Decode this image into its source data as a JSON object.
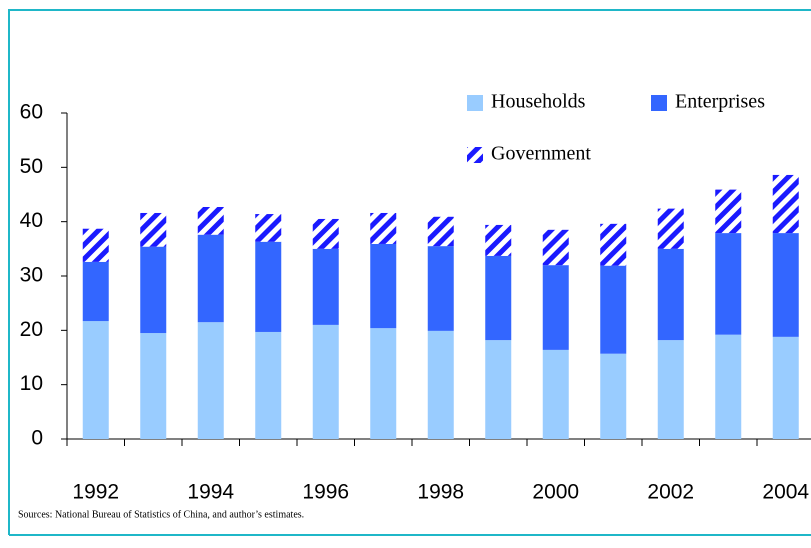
{
  "chart_data": {
    "type": "stacked-bar",
    "categories": [
      "1992",
      null,
      "1994",
      null,
      "1996",
      null,
      "1998",
      null,
      "2000",
      null,
      "2002",
      null,
      "2004"
    ],
    "series": [
      {
        "name": "Households",
        "color": "#99ccff",
        "values": [
          21.7,
          19.5,
          21.5,
          19.7,
          21,
          20.4,
          19.9,
          18.2,
          16.4,
          15.7,
          18.2,
          19.2,
          18.8
        ]
      },
      {
        "name": "Enterprises",
        "color": "#3366ff",
        "values": [
          10.9,
          15.9,
          16.1,
          16.6,
          14,
          15.5,
          15.6,
          15.5,
          15.6,
          16.2,
          16.8,
          18.7,
          19.1
        ]
      },
      {
        "name": "Government",
        "color": "#1a1aff",
        "hatch": true,
        "values": [
          6.1,
          6.2,
          5.1,
          5.1,
          5.5,
          5.7,
          5.4,
          5.7,
          6.5,
          7.7,
          7.4,
          8,
          10.7
        ]
      }
    ],
    "ylim": [
      0,
      60
    ],
    "yticks": [
      0,
      10,
      20,
      30,
      40,
      50,
      60
    ],
    "source": "Sources: National Bureau of Statistics of China, and author’s estimates."
  }
}
